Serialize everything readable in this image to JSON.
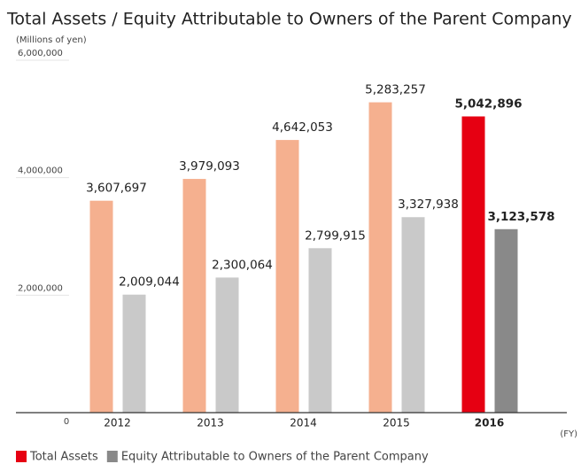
{
  "chart_data": {
    "type": "bar",
    "title": "Total Assets / Equity Attributable to Owners of the Parent Company",
    "y_axis_label": "(Millions of yen)",
    "x_axis_label": "(FY)",
    "categories": [
      "2012",
      "2013",
      "2014",
      "2015",
      "2016"
    ],
    "series": [
      {
        "name": "Total Assets",
        "color": "#e60012",
        "colors": [
          "#f5b08f",
          "#f5b08f",
          "#f5b08f",
          "#f5b08f",
          "#e60012"
        ],
        "values": [
          3607697,
          3979093,
          4642053,
          5283257,
          5042896
        ],
        "value_labels": [
          "3,607,697",
          "3,979,093",
          "4,642,053",
          "5,283,257",
          "5,042,896"
        ]
      },
      {
        "name": "Equity Attributable to Owners of the Parent Company",
        "color": "#898989",
        "colors": [
          "#c9c9c9",
          "#c9c9c9",
          "#c9c9c9",
          "#c9c9c9",
          "#898989"
        ],
        "values": [
          2009044,
          2300064,
          2799915,
          3327938,
          3123578
        ],
        "value_labels": [
          "2,009,044",
          "2,300,064",
          "2,799,915",
          "3,327,938",
          "3,123,578"
        ]
      }
    ],
    "ylim": [
      0,
      6000000
    ],
    "yticks": [
      0,
      {
        "value": 2000000,
        "label": "2,000,000"
      },
      {
        "value": 4000000,
        "label": "4,000,000"
      },
      {
        "value": 6000000,
        "label": "6,000,000"
      }
    ],
    "grid": false
  }
}
